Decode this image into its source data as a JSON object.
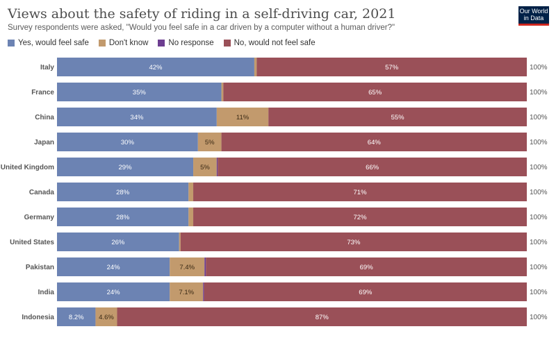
{
  "header": {
    "title": "Views about the safety of riding in a self-driving car, 2021",
    "subtitle": "Survey respondents were asked, \"Would you feel safe in a car driven by a computer without a human driver?\"",
    "logo_line1": "Our World",
    "logo_line2": "in Data"
  },
  "colors": {
    "yes": "#6c83b3",
    "dont_know": "#c29a6d",
    "no_response": "#6d3e91",
    "no": "#9a5058",
    "logo_bg": "#002147",
    "logo_bar": "#ce261e"
  },
  "chart_data": {
    "type": "bar",
    "orientation": "horizontal",
    "stacked": true,
    "title": "Views about the safety of riding in a self-driving car, 2021",
    "subtitle": "Survey respondents were asked, \"Would you feel safe in a car driven by a computer without a human driver?\"",
    "xlim": [
      0,
      100
    ],
    "grid": false,
    "legend_position": "top-left",
    "categories": [
      "Italy",
      "France",
      "China",
      "Japan",
      "United Kingdom",
      "Canada",
      "Germany",
      "United States",
      "Pakistan",
      "India",
      "Indonesia"
    ],
    "totals": [
      "100%",
      "100%",
      "100%",
      "100%",
      "100%",
      "100%",
      "100%",
      "100%",
      "100%",
      "100%",
      "100%"
    ],
    "series": [
      {
        "key": "yes",
        "name": "Yes, would feel safe",
        "values": [
          42,
          35,
          34,
          30,
          29,
          28,
          28,
          26,
          24,
          24,
          8.2
        ],
        "labels": [
          "42%",
          "35%",
          "34%",
          "30%",
          "29%",
          "28%",
          "28%",
          "26%",
          "24%",
          "24%",
          "8.2%"
        ]
      },
      {
        "key": "dont_know",
        "name": "Don't know",
        "values": [
          0.5,
          0.4,
          11,
          5,
          5,
          1,
          1,
          0.3,
          7.4,
          7.1,
          4.6
        ],
        "labels": [
          "",
          "",
          "11%",
          "5%",
          "5%",
          "",
          "",
          "",
          "7.4%",
          "7.1%",
          "4.6%"
        ]
      },
      {
        "key": "no_response",
        "name": "No response",
        "values": [
          0,
          0,
          0,
          0,
          0.2,
          0,
          0,
          0,
          0.3,
          0.2,
          0
        ],
        "labels": [
          "",
          "",
          "",
          "",
          "",
          "",
          "",
          "",
          "",
          "",
          ""
        ]
      },
      {
        "key": "no",
        "name": "No, would not feel safe",
        "values": [
          57,
          65,
          55,
          64,
          66,
          71,
          72,
          73,
          69,
          69,
          87
        ],
        "labels": [
          "57%",
          "65%",
          "55%",
          "64%",
          "66%",
          "71%",
          "72%",
          "73%",
          "69%",
          "69%",
          "87%"
        ]
      }
    ]
  }
}
